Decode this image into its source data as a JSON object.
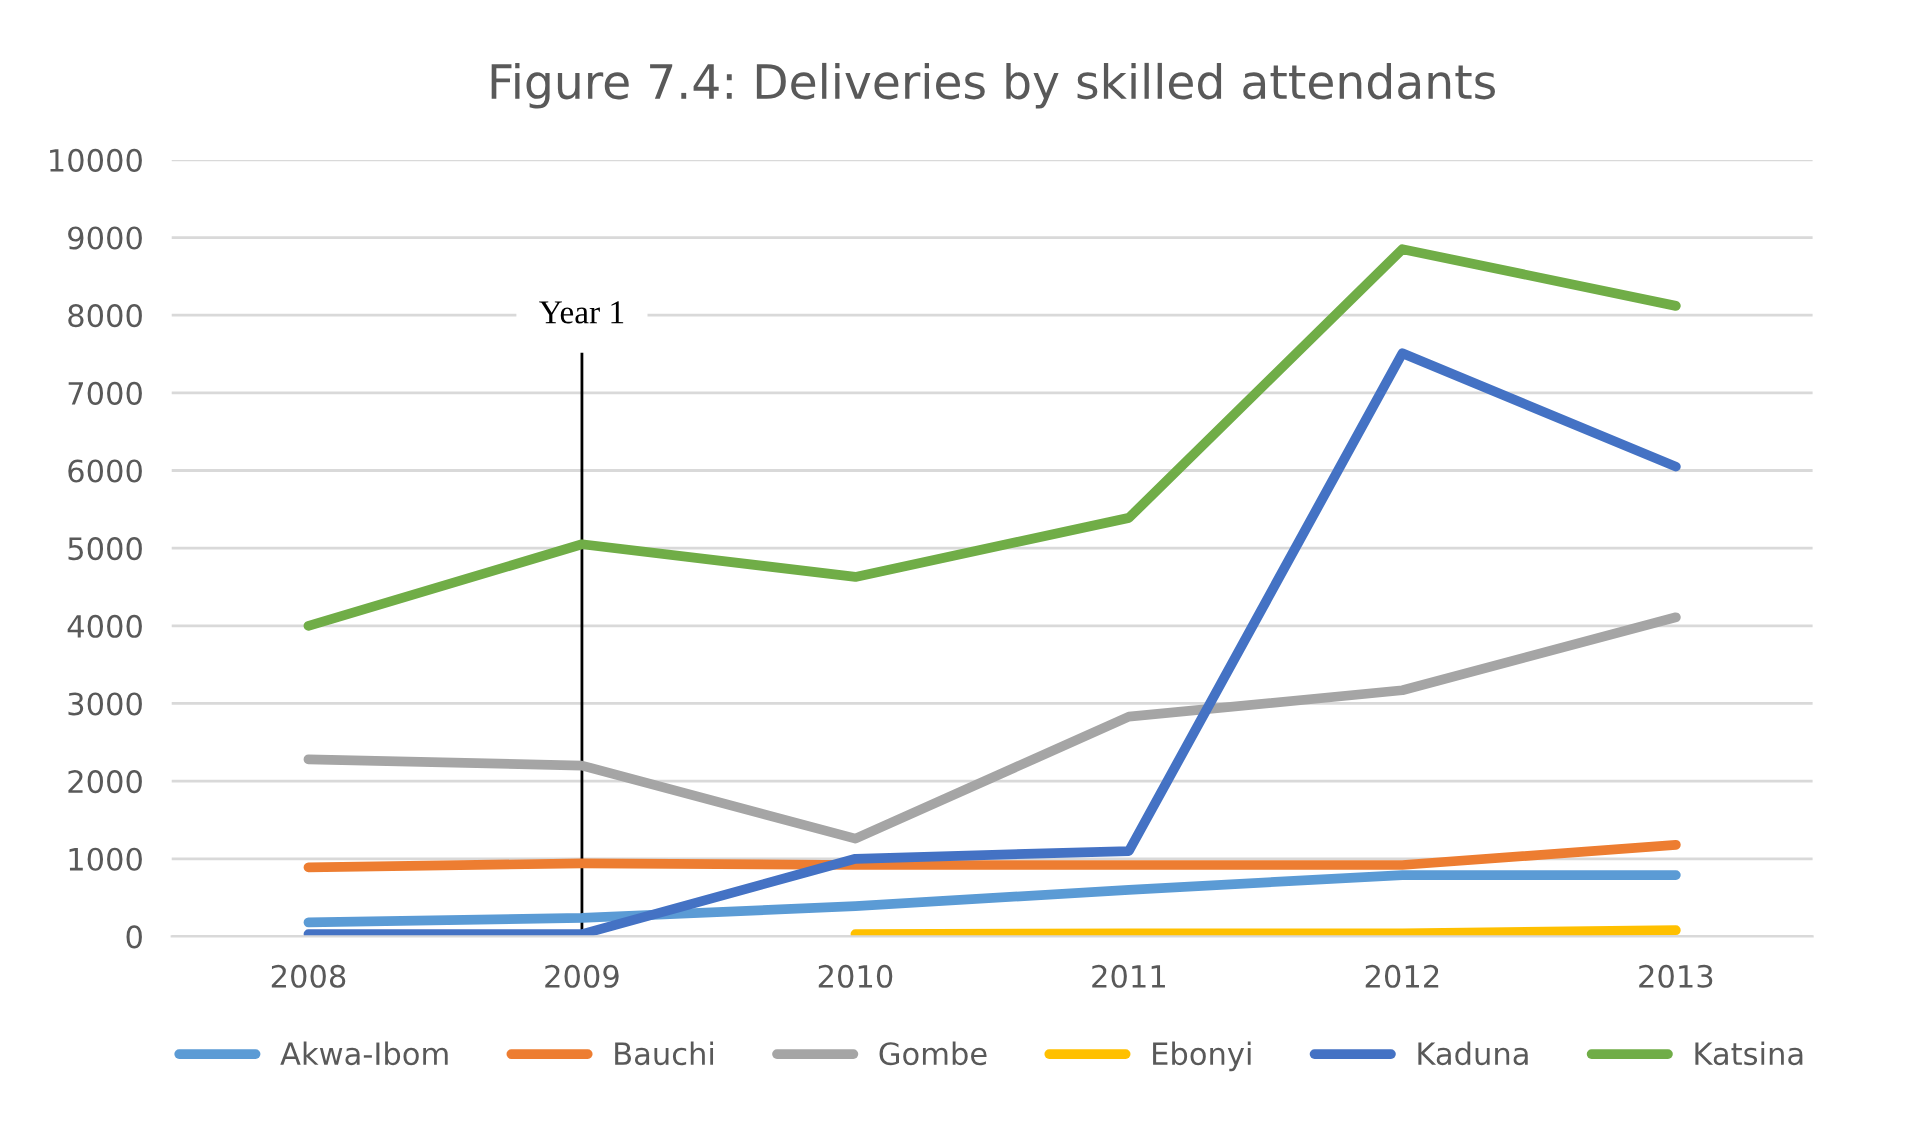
{
  "chart_data": {
    "type": "line",
    "title": "Figure 7.4: Deliveries by skilled attendants",
    "categories": [
      "2008",
      "2009",
      "2010",
      "2011",
      "2012",
      "2013"
    ],
    "series": [
      {
        "name": "Akwa-Ibom",
        "color": "#5b9bd5",
        "values": [
          180,
          240,
          390,
          600,
          790,
          790
        ]
      },
      {
        "name": "Bauchi",
        "color": "#ed7d31",
        "values": [
          890,
          940,
          920,
          920,
          920,
          1180
        ]
      },
      {
        "name": "Gombe",
        "color": "#a5a5a5",
        "values": [
          2280,
          2200,
          1260,
          2830,
          3170,
          4110
        ]
      },
      {
        "name": "Ebonyi",
        "color": "#ffc000",
        "values": [
          null,
          null,
          30,
          40,
          40,
          80
        ]
      },
      {
        "name": "Kaduna",
        "color": "#4472c4",
        "values": [
          30,
          30,
          1000,
          1100,
          7510,
          6050
        ]
      },
      {
        "name": "Katsina",
        "color": "#70ad47",
        "values": [
          4000,
          5050,
          4630,
          5390,
          8850,
          8120
        ]
      }
    ],
    "ylim": [
      0,
      10000
    ],
    "yticks": [
      0,
      1000,
      2000,
      3000,
      4000,
      5000,
      6000,
      7000,
      8000,
      9000,
      10000
    ],
    "grid": "y",
    "legend": "bottom",
    "marker": "none",
    "line_style": "solid",
    "ref_lines": [
      {
        "axis": "x",
        "value": "2009",
        "label": "Year 1",
        "color": "#000000"
      }
    ]
  }
}
